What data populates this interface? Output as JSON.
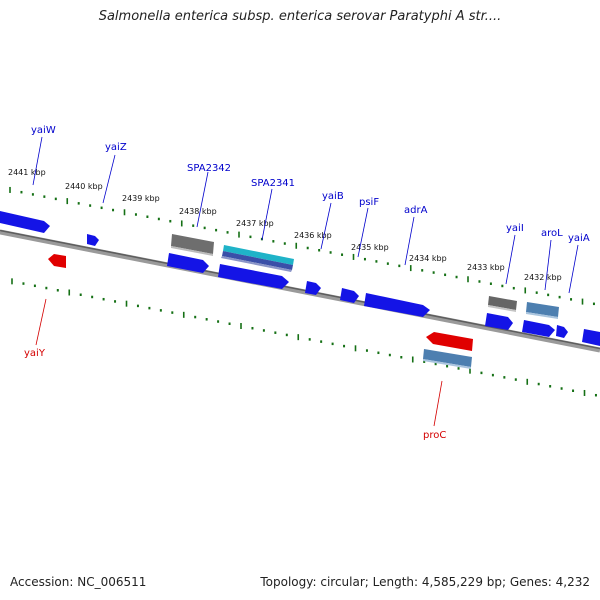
{
  "title": "Salmonella enterica subsp. enterica serovar Paratyphi A str....",
  "footer": {
    "accession": "Accession: NC_006511",
    "summary": "Topology: circular; Length: 4,585,229 bp; Genes: 4,232"
  },
  "colors": {
    "forward_gene": "#1414e6",
    "reverse_gene": "#e00000",
    "gray_feature": "#707070",
    "steel_feature": "#4d7fb0",
    "teal_feature": "#1fb3c8",
    "backbone": "#808080",
    "tick": "#157015",
    "label_forward": "#0000cc",
    "label_reverse": "#d40000"
  },
  "kbp_labels": [
    "2441 kbp",
    "2440 kbp",
    "2439 kbp",
    "2438 kbp",
    "2437 kbp",
    "2436 kbp",
    "2435 kbp",
    "2434 kbp",
    "2433 kbp",
    "2432 kbp"
  ],
  "forward_gene_labels": [
    "yaiW",
    "yaiZ",
    "SPA2342",
    "SPA2341",
    "yaiB",
    "psiF",
    "adrA",
    "yaiI",
    "aroL",
    "yaiA"
  ],
  "reverse_gene_labels": [
    "yaiY",
    "proC"
  ]
}
